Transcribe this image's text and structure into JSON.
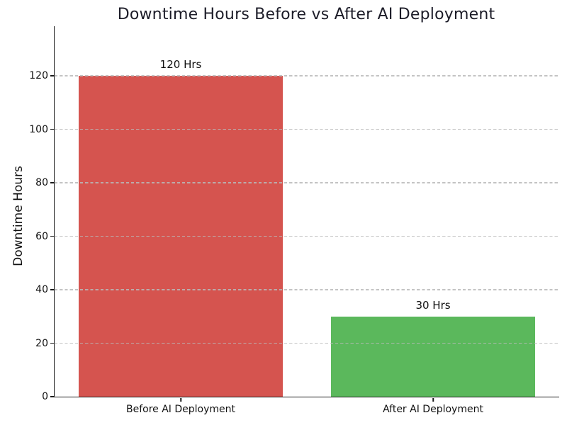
{
  "chart_data": {
    "type": "bar",
    "title": "Downtime Hours Before vs After AI Deployment",
    "ylabel": "Downtime Hours",
    "xlabel": "",
    "categories": [
      "Before AI Deployment",
      "After AI Deployment"
    ],
    "values": [
      120,
      30
    ],
    "bar_labels": [
      "120 Hrs",
      "30 Hrs"
    ],
    "bar_colors": [
      "#d5544f",
      "#5bb85c"
    ],
    "yticks": [
      0,
      20,
      40,
      60,
      80,
      100,
      120
    ],
    "ylim": [
      0,
      138.6
    ],
    "grid": {
      "axis": "y",
      "style": "dashed",
      "drawn_above_bars": true
    },
    "legend": "none"
  },
  "colors": {
    "background": "#ffffff",
    "title": "#1c1c28",
    "text": "#111111",
    "axis_spine": "#1a1a1a",
    "grid_line": "#b9b9b9"
  }
}
